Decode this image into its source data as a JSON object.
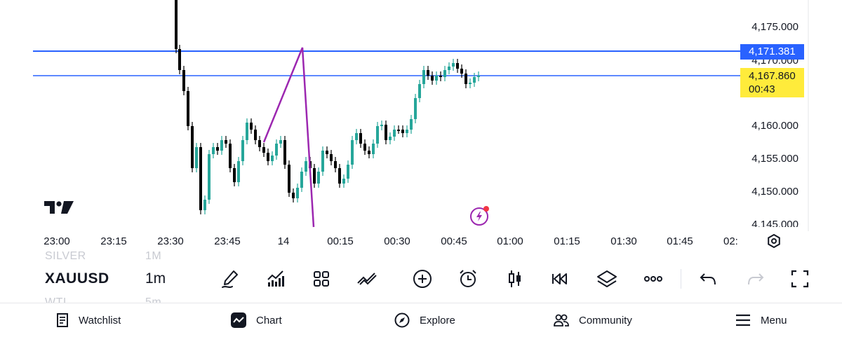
{
  "chart": {
    "symbol": "XAUUSD",
    "interval": "1m",
    "ghost_symbol_above": "SILVER",
    "ghost_interval_above": "1M",
    "ghost_symbol_below": "WTI",
    "ghost_interval_below": "5m",
    "price_axis": [
      "4,175.000",
      "4,170.000",
      "4,160.000",
      "4,155.000",
      "4,150.000",
      "4,145.000"
    ],
    "time_axis": [
      "23:00",
      "23:15",
      "23:30",
      "23:45",
      "14",
      "00:15",
      "00:30",
      "00:45",
      "01:00",
      "01:15",
      "01:30",
      "01:45",
      "02:"
    ],
    "horizontal_line_price": "4,171.381",
    "last_price": "4,167.860",
    "countdown": "00:43",
    "colors": {
      "up": "#26a69a",
      "down": "#000000",
      "hline": "#2962ff",
      "trend_line": "#9c27b0",
      "last_price_bg": "#ffeb3b"
    }
  },
  "toolbar": {
    "icons": [
      "pencil-icon",
      "indicators-icon",
      "layouts-icon",
      "drawing-tools-icon",
      "add-icon",
      "alert-clock-icon",
      "candle-style-icon",
      "replay-icon",
      "layers-icon",
      "more-icon",
      "undo-icon",
      "redo-icon",
      "fullscreen-icon"
    ]
  },
  "nav": {
    "items": [
      {
        "label": "Watchlist",
        "icon": "watchlist-icon"
      },
      {
        "label": "Chart",
        "icon": "chart-icon"
      },
      {
        "label": "Explore",
        "icon": "compass-icon"
      },
      {
        "label": "Community",
        "icon": "community-icon"
      },
      {
        "label": "Menu",
        "icon": "menu-icon"
      }
    ]
  }
}
